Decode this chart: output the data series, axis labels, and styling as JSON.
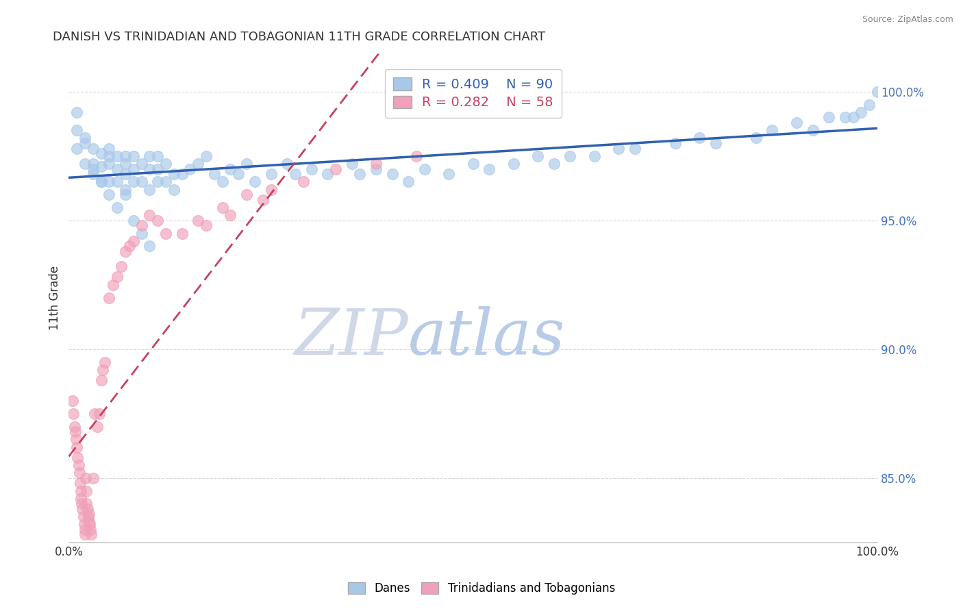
{
  "title": "DANISH VS TRINIDADIAN AND TOBAGONIAN 11TH GRADE CORRELATION CHART",
  "source": "Source: ZipAtlas.com",
  "ylabel": "11th Grade",
  "y_tick_values": [
    0.85,
    0.9,
    0.95,
    1.0
  ],
  "x_range": [
    0.0,
    1.0
  ],
  "y_range": [
    0.825,
    1.015
  ],
  "blue_R": 0.409,
  "blue_N": 90,
  "pink_R": 0.282,
  "pink_N": 58,
  "blue_color": "#A8C8E8",
  "pink_color": "#F0A0B8",
  "blue_line_color": "#3060B0",
  "pink_line_color": "#C84060",
  "legend_blue_label": "Danes",
  "legend_pink_label": "Trinidadians and Tobagonians",
  "watermark_zip": "ZIP",
  "watermark_atlas": "atlas",
  "watermark_zip_color": "#D0D8E8",
  "watermark_atlas_color": "#B8CCE8",
  "blue_x": [
    0.01,
    0.01,
    0.02,
    0.02,
    0.03,
    0.03,
    0.03,
    0.04,
    0.04,
    0.04,
    0.05,
    0.05,
    0.05,
    0.05,
    0.06,
    0.06,
    0.06,
    0.07,
    0.07,
    0.07,
    0.07,
    0.08,
    0.08,
    0.08,
    0.09,
    0.09,
    0.1,
    0.1,
    0.1,
    0.11,
    0.11,
    0.11,
    0.12,
    0.12,
    0.13,
    0.13,
    0.14,
    0.15,
    0.16,
    0.17,
    0.18,
    0.19,
    0.2,
    0.21,
    0.22,
    0.23,
    0.25,
    0.27,
    0.28,
    0.3,
    0.32,
    0.35,
    0.36,
    0.38,
    0.4,
    0.42,
    0.44,
    0.47,
    0.5,
    0.52,
    0.55,
    0.58,
    0.6,
    0.62,
    0.65,
    0.68,
    0.7,
    0.75,
    0.78,
    0.8,
    0.85,
    0.87,
    0.9,
    0.92,
    0.94,
    0.96,
    0.97,
    0.98,
    0.99,
    1.0,
    0.01,
    0.02,
    0.03,
    0.04,
    0.05,
    0.06,
    0.07,
    0.08,
    0.09,
    0.1
  ],
  "blue_y": [
    0.985,
    0.992,
    0.98,
    0.972,
    0.978,
    0.972,
    0.968,
    0.976,
    0.971,
    0.965,
    0.978,
    0.975,
    0.972,
    0.965,
    0.975,
    0.97,
    0.965,
    0.975,
    0.972,
    0.968,
    0.962,
    0.975,
    0.97,
    0.965,
    0.972,
    0.965,
    0.975,
    0.97,
    0.962,
    0.97,
    0.965,
    0.975,
    0.972,
    0.965,
    0.968,
    0.962,
    0.968,
    0.97,
    0.972,
    0.975,
    0.968,
    0.965,
    0.97,
    0.968,
    0.972,
    0.965,
    0.968,
    0.972,
    0.968,
    0.97,
    0.968,
    0.972,
    0.968,
    0.97,
    0.968,
    0.965,
    0.97,
    0.968,
    0.972,
    0.97,
    0.972,
    0.975,
    0.972,
    0.975,
    0.975,
    0.978,
    0.978,
    0.98,
    0.982,
    0.98,
    0.982,
    0.985,
    0.988,
    0.985,
    0.99,
    0.99,
    0.99,
    0.992,
    0.995,
    1.0,
    0.978,
    0.982,
    0.97,
    0.965,
    0.96,
    0.955,
    0.96,
    0.95,
    0.945,
    0.94
  ],
  "pink_x": [
    0.005,
    0.006,
    0.007,
    0.008,
    0.009,
    0.01,
    0.011,
    0.012,
    0.013,
    0.014,
    0.015,
    0.015,
    0.016,
    0.017,
    0.018,
    0.019,
    0.02,
    0.02,
    0.021,
    0.022,
    0.022,
    0.023,
    0.024,
    0.025,
    0.025,
    0.026,
    0.027,
    0.028,
    0.03,
    0.032,
    0.035,
    0.038,
    0.04,
    0.042,
    0.045,
    0.05,
    0.055,
    0.06,
    0.065,
    0.07,
    0.075,
    0.08,
    0.09,
    0.1,
    0.11,
    0.12,
    0.14,
    0.16,
    0.19,
    0.22,
    0.25,
    0.29,
    0.33,
    0.38,
    0.43,
    0.17,
    0.2,
    0.24
  ],
  "pink_y": [
    0.88,
    0.875,
    0.87,
    0.868,
    0.865,
    0.862,
    0.858,
    0.855,
    0.852,
    0.848,
    0.845,
    0.842,
    0.84,
    0.838,
    0.835,
    0.832,
    0.83,
    0.828,
    0.85,
    0.845,
    0.84,
    0.838,
    0.835,
    0.833,
    0.836,
    0.832,
    0.83,
    0.828,
    0.85,
    0.875,
    0.87,
    0.875,
    0.888,
    0.892,
    0.895,
    0.92,
    0.925,
    0.928,
    0.932,
    0.938,
    0.94,
    0.942,
    0.948,
    0.952,
    0.95,
    0.945,
    0.945,
    0.95,
    0.955,
    0.96,
    0.962,
    0.965,
    0.97,
    0.972,
    0.975,
    0.948,
    0.952,
    0.958
  ]
}
